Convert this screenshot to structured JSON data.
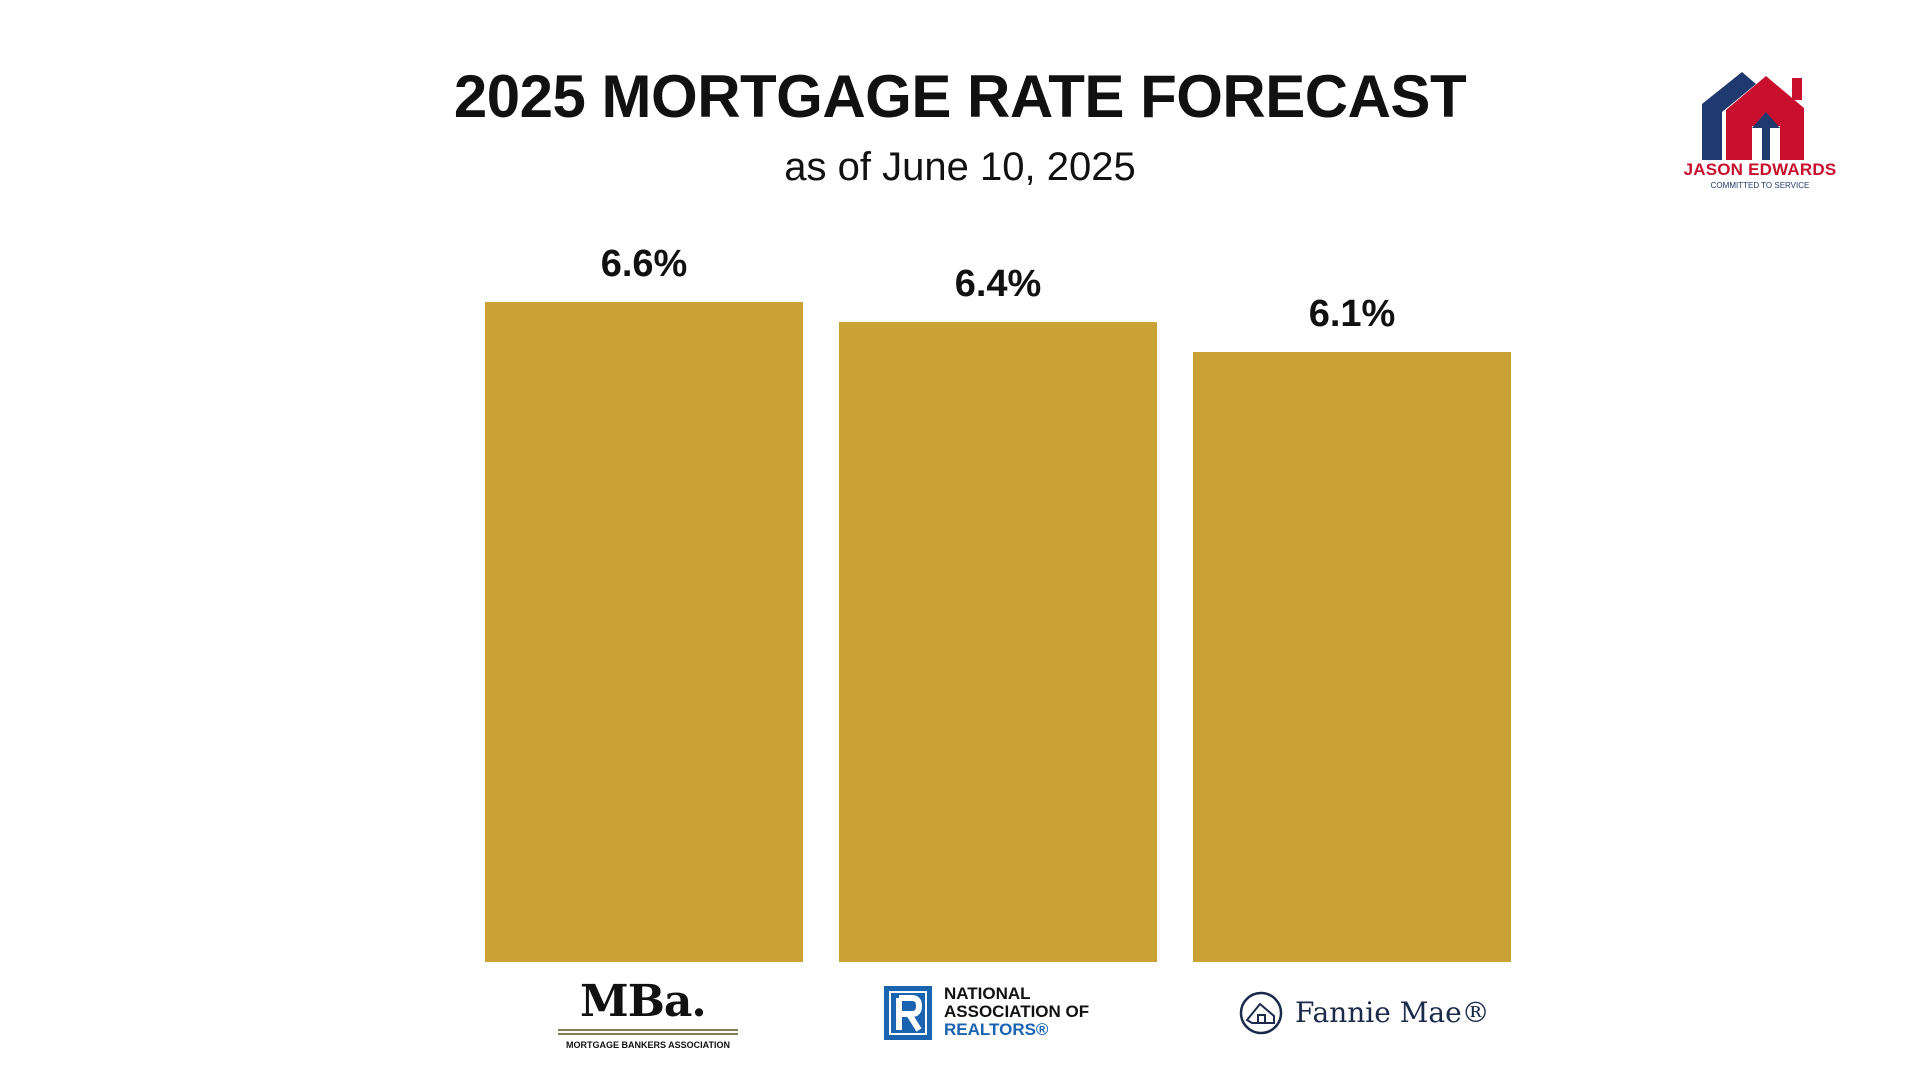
{
  "chart_data": {
    "type": "bar",
    "title": "2025 MORTGAGE RATE FORECAST",
    "subtitle": "as of June 10, 2025",
    "categories": [
      "Mortgage Bankers Association",
      "National Association of Realtors",
      "Fannie Mae"
    ],
    "values": [
      6.6,
      6.4,
      6.1
    ],
    "value_labels": [
      "6.6%",
      "6.4%",
      "6.1%"
    ],
    "bar_color": "#CAA135",
    "ylim": [
      0,
      6.6
    ],
    "grid": false,
    "axes_visible": false
  },
  "brand": {
    "name": "JASON EDWARDS",
    "tagline": "COMMITTED TO SERVICE",
    "colors": {
      "red": "#C8102E",
      "navy": "#1F3A6E"
    }
  },
  "source_logos": {
    "mba": {
      "mark": "MBa.",
      "caption": "MORTGAGE BANKERS ASSOCIATION"
    },
    "nar": {
      "line1": "NATIONAL",
      "line2": "ASSOCIATION OF",
      "line3": "REALTORS®",
      "icon": "realtor-r-icon"
    },
    "fannie": {
      "name": "Fannie Mae®",
      "icon": "fannie-mae-house-icon"
    }
  }
}
